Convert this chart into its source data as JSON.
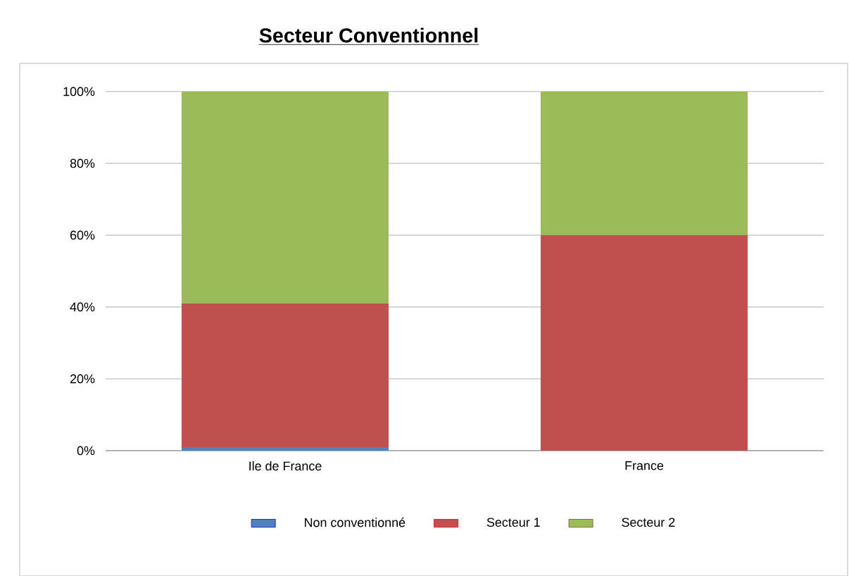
{
  "chart_data": {
    "type": "bar",
    "title": "Secteur Conventionnel",
    "stacked": true,
    "categories": [
      "Ile de France",
      "France"
    ],
    "series": [
      {
        "name": "Non conventionné",
        "color": "#4f81bd",
        "values": [
          1,
          0
        ]
      },
      {
        "name": "Secteur 1",
        "color": "#c0504d",
        "values": [
          40,
          60
        ]
      },
      {
        "name": "Secteur 2",
        "color": "#9bbb59",
        "values": [
          59,
          40
        ]
      }
    ],
    "ylim": [
      0,
      100
    ],
    "yticks": [
      {
        "value": 0,
        "label": "0%"
      },
      {
        "value": 20,
        "label": "20%"
      },
      {
        "value": 40,
        "label": "40%"
      },
      {
        "value": 60,
        "label": "60%"
      },
      {
        "value": 80,
        "label": "80%"
      },
      {
        "value": 100,
        "label": "100%"
      }
    ],
    "grid": "y",
    "legend": "bottom"
  }
}
